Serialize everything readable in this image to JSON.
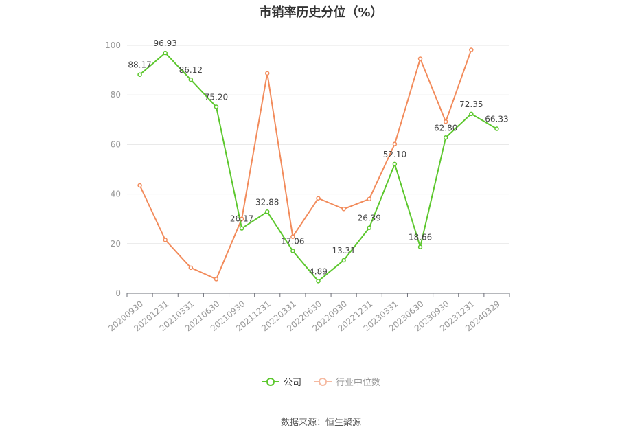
{
  "chart_data": {
    "type": "line",
    "title": "市销率历史分位（%）",
    "categories": [
      "20200930",
      "20201231",
      "20210331",
      "20210630",
      "20210930",
      "20211231",
      "20220331",
      "20220630",
      "20220930",
      "20221231",
      "20230331",
      "20230630",
      "20230930",
      "20231231",
      "20240329"
    ],
    "series": [
      {
        "name": "公司",
        "color": "#5cc72d",
        "values": [
          88.17,
          96.93,
          86.12,
          75.2,
          26.17,
          32.88,
          17.06,
          4.89,
          13.31,
          26.39,
          52.1,
          18.66,
          62.8,
          72.35,
          66.33
        ],
        "labels": [
          "88.17",
          "96.93",
          "86.12",
          "75.20",
          "26.17",
          "32.88",
          "17.06",
          "4.89",
          "13.31",
          "26.39",
          "52.10",
          "18.66",
          "62.80",
          "72.35",
          "66.33"
        ]
      },
      {
        "name": "行业中位数",
        "color": "#f28b5b",
        "values": [
          43.5,
          21.5,
          10.3,
          5.7,
          30.0,
          88.7,
          22.8,
          38.3,
          34.0,
          38.0,
          60.2,
          94.6,
          69.2,
          98.2,
          null
        ]
      }
    ],
    "ylim": [
      0,
      100
    ],
    "yticks": [
      "0",
      "20",
      "40",
      "60",
      "80",
      "100"
    ],
    "xlabel": "",
    "ylabel": "",
    "grid": true,
    "legend_position": "bottom"
  },
  "source": "数据来源：恒生聚源"
}
